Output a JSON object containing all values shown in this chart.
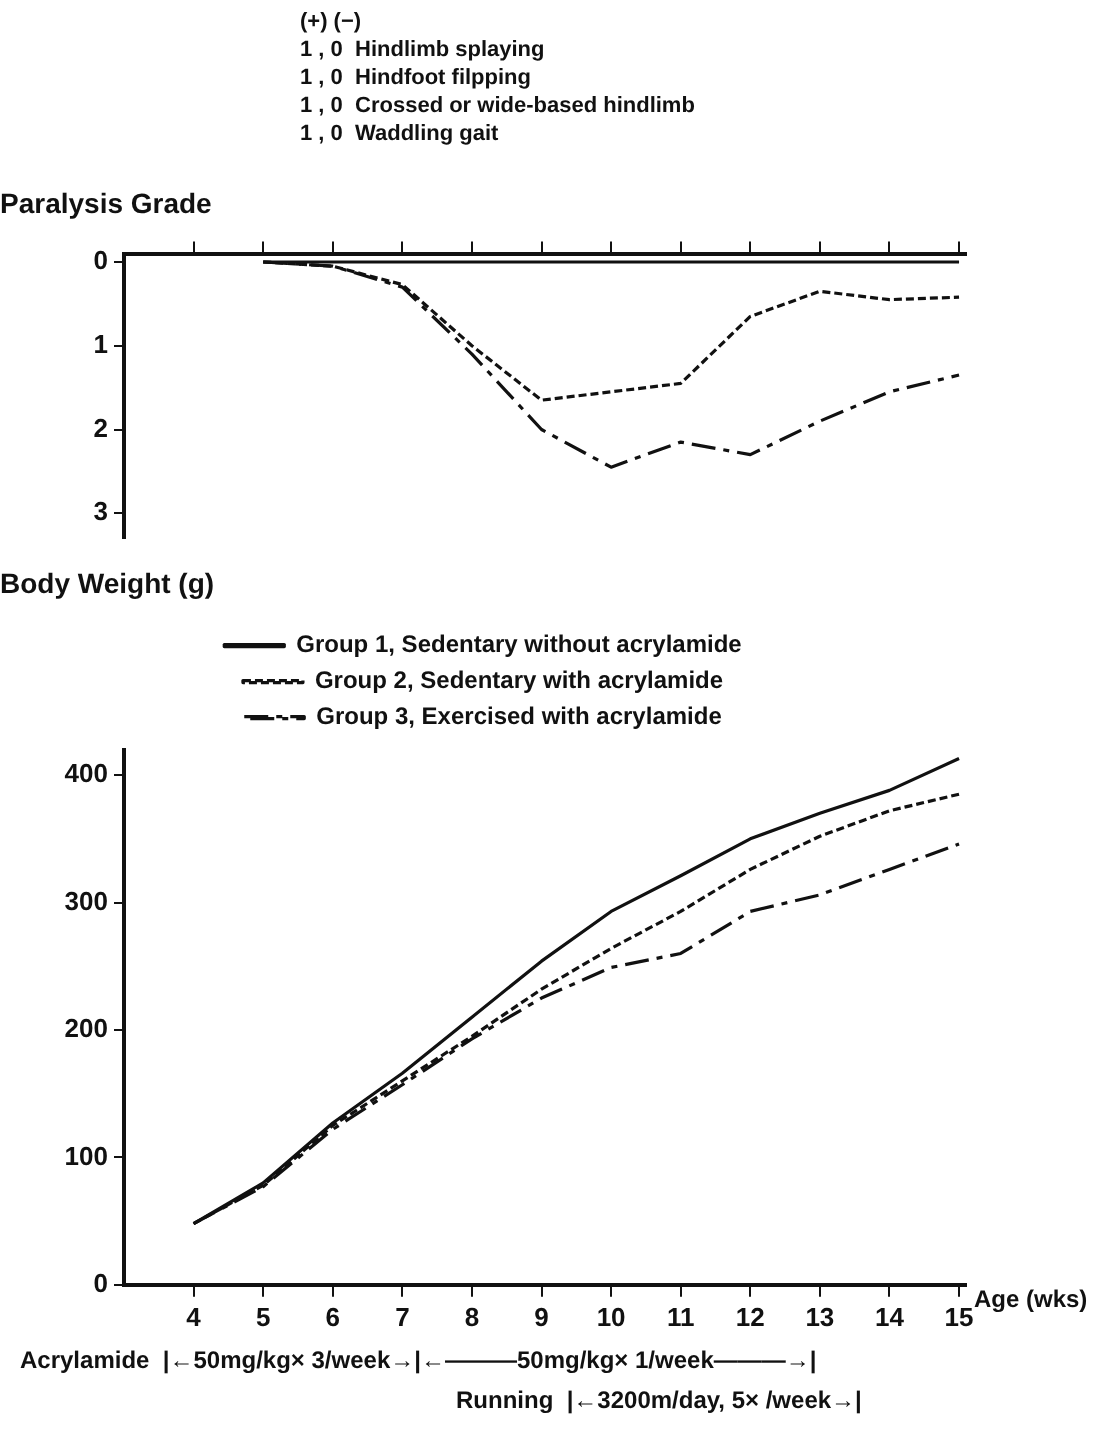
{
  "chart_data": [
    {
      "type": "line",
      "ylabel": "Paralysis Grade",
      "annotations": [
        "(+) (−)",
        "1 , 0  Hindlimb splaying",
        "1 , 0  Hindfoot filpping",
        "1 , 0  Crossed or wide-based hindlimb",
        "1 , 0  Waddling gait"
      ],
      "x": [
        5,
        6,
        7,
        8,
        9,
        10,
        11,
        12,
        13,
        14,
        15
      ],
      "series": [
        {
          "color": "#111111",
          "line_style": "solid",
          "values": [
            0,
            0,
            0,
            0,
            0,
            0,
            0,
            0,
            0,
            0,
            0
          ]
        },
        {
          "color": "#111111",
          "line_style": "dashed",
          "values": [
            0,
            0.05,
            0.27,
            1.0,
            1.65,
            1.55,
            1.45,
            0.65,
            0.35,
            0.45,
            0.42
          ]
        },
        {
          "color": "#111111",
          "line_style": "dashdot",
          "values": [
            0,
            0.05,
            0.3,
            1.1,
            2.0,
            2.45,
            2.15,
            2.3,
            1.9,
            1.55,
            1.35
          ]
        }
      ],
      "xlim": [
        3,
        15.1
      ],
      "xticks": [
        {
          "value": 4,
          "label": null
        },
        {
          "value": 5,
          "label": null
        },
        {
          "value": 6,
          "label": null
        },
        {
          "value": 7,
          "label": null
        },
        {
          "value": 8,
          "label": null
        },
        {
          "value": 9,
          "label": null
        },
        {
          "value": 10,
          "label": null
        },
        {
          "value": 11,
          "label": null
        },
        {
          "value": 12,
          "label": null
        },
        {
          "value": 13,
          "label": null
        },
        {
          "value": 14,
          "label": null
        },
        {
          "value": 15,
          "label": null
        }
      ],
      "ylim": [
        3.3,
        -0.1
      ],
      "yticks": [
        0,
        1,
        2,
        3
      ],
      "tick_labels": "y",
      "grid": false,
      "legend": false,
      "marker": "none"
    },
    {
      "type": "line",
      "ylabel": "Body Weight (g)",
      "xlabel": "Age (wks)",
      "annotations": [
        "Acrylamide  |←50mg/kg× 3/week→|←———50mg/kg× 1/week———→|",
        "Running  |←3200m/day, 5× /week→|"
      ],
      "x": [
        4,
        5,
        6,
        7,
        8,
        9,
        10,
        11,
        12,
        13,
        14,
        15
      ],
      "series": [
        {
          "name": "Group 1, Sedentary without acrylamide",
          "color": "#111111",
          "line_style": "solid",
          "values": [
            48,
            80,
            127,
            166,
            210,
            254,
            293,
            321,
            350,
            370,
            388,
            413
          ]
        },
        {
          "name": "Group 2, Sedentary with acrylamide",
          "color": "#111111",
          "line_style": "dashed",
          "values": [
            48,
            78,
            125,
            160,
            195,
            232,
            264,
            293,
            326,
            352,
            372,
            385
          ]
        },
        {
          "name": "Group 3, Exercised with acrylamide",
          "color": "#111111",
          "line_style": "dashdot",
          "values": [
            48,
            77,
            122,
            157,
            193,
            225,
            249,
            260,
            293,
            306,
            326,
            346
          ]
        }
      ],
      "xlim": [
        3,
        15.1
      ],
      "xticks": [
        4,
        5,
        6,
        7,
        8,
        9,
        10,
        11,
        12,
        13,
        14,
        15
      ],
      "ylim": [
        0,
        420
      ],
      "yticks": [
        0,
        100,
        200,
        300,
        400
      ],
      "grid": false,
      "legend": "top",
      "marker": "none"
    }
  ]
}
